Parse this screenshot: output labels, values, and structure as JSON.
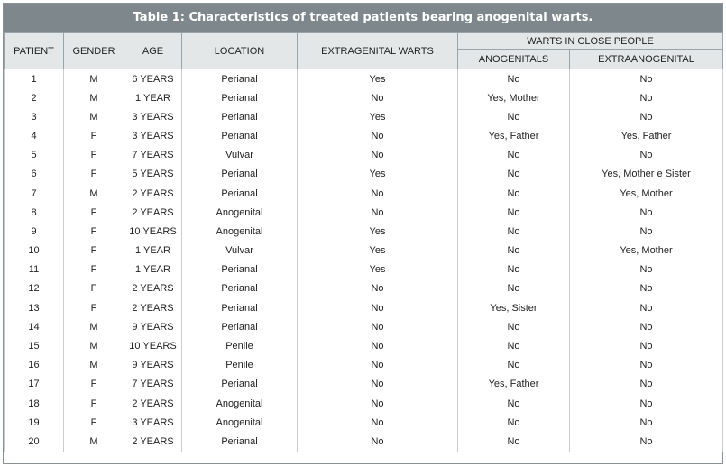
{
  "title": "Table 1: Characteristics of treated patients bearing anogenital warts.",
  "headers": {
    "patient": "PATIENT",
    "gender": "GENDER",
    "age": "AGE",
    "location": "LOCATION",
    "extragenital": "EXTRAGENITAL WARTS",
    "close_people": "WARTS IN CLOSE PEOPLE",
    "anogenitals": "ANOGENITALS",
    "extraanogenital": "EXTRAANOGENITAL"
  },
  "rows": [
    [
      "1",
      "M",
      "6 YEARS",
      "Perianal",
      "Yes",
      "No",
      "No"
    ],
    [
      "2",
      "M",
      "1 YEAR",
      "Perianal",
      "No",
      "Yes, Mother",
      "No"
    ],
    [
      "3",
      "M",
      "3 YEARS",
      "Perianal",
      "Yes",
      "No",
      "No"
    ],
    [
      "4",
      "F",
      "3 YEARS",
      "Perianal",
      "No",
      "Yes, Father",
      "Yes, Father"
    ],
    [
      "5",
      "F",
      "7 YEARS",
      "Vulvar",
      "No",
      "No",
      "No"
    ],
    [
      "6",
      "F",
      "5 YEARS",
      "Perianal",
      "Yes",
      "No",
      "Yes, Mother e Sister"
    ],
    [
      "7",
      "M",
      "2 YEARS",
      "Perianal",
      "No",
      "No",
      "Yes, Mother"
    ],
    [
      "8",
      "F",
      "2 YEARS",
      "Anogenital",
      "No",
      "No",
      "No"
    ],
    [
      "9",
      "F",
      "10 YEARS",
      "Anogenital",
      "Yes",
      "No",
      "No"
    ],
    [
      "10",
      "F",
      "1 YEAR",
      "Vulvar",
      "Yes",
      "No",
      "Yes, Mother"
    ],
    [
      "11",
      "F",
      "1 YEAR",
      "Perianal",
      "Yes",
      "No",
      "No"
    ],
    [
      "12",
      "F",
      "2 YEARS",
      "Perianal",
      "No",
      "No",
      "No"
    ],
    [
      "13",
      "F",
      "2 YEARS",
      "Perianal",
      "No",
      "Yes, Sister",
      "No"
    ],
    [
      "14",
      "M",
      "9 YEARS",
      "Perianal",
      "No",
      "No",
      "No"
    ],
    [
      "15",
      "M",
      "10 YEARS",
      "Penile",
      "No",
      "No",
      "No"
    ],
    [
      "16",
      "M",
      "9 YEARS",
      "Penile",
      "No",
      "No",
      "No"
    ],
    [
      "17",
      "F",
      "7 YEARS",
      "Perianal",
      "No",
      "Yes, Father",
      "No"
    ],
    [
      "18",
      "F",
      "2 YEARS",
      "Anogenital",
      "No",
      "No",
      "No"
    ],
    [
      "19",
      "F",
      "3 YEARS",
      "Anogenital",
      "No",
      "No",
      "No"
    ],
    [
      "20",
      "M",
      "2 YEARS",
      "Perianal",
      "No",
      "No",
      "No"
    ]
  ]
}
